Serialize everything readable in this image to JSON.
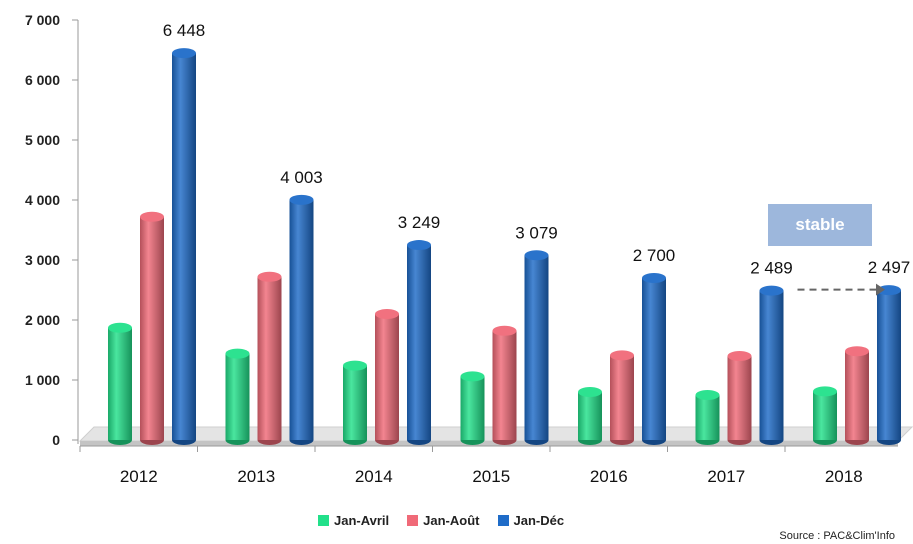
{
  "chart_data": {
    "type": "bar",
    "categories": [
      "2012",
      "2013",
      "2014",
      "2015",
      "2016",
      "2017",
      "2018"
    ],
    "series": [
      {
        "name": "Jan-Avril",
        "color": "#22e08a",
        "values": [
          1870,
          1440,
          1240,
          1060,
          800,
          750,
          810
        ]
      },
      {
        "name": "Jan-Août",
        "color": "#f06a78",
        "values": [
          3720,
          2720,
          2100,
          1820,
          1410,
          1400,
          1480
        ]
      },
      {
        "name": "Jan-Déc",
        "color": "#1f6cc8",
        "values": [
          6448,
          4003,
          3249,
          3079,
          2700,
          2489,
          2497
        ]
      }
    ],
    "data_labels": [
      "6 448",
      "4 003",
      "3 249",
      "3 079",
      "2 700",
      "2 489",
      "2 497"
    ],
    "y_ticks": [
      0,
      1000,
      2000,
      3000,
      4000,
      5000,
      6000,
      7000
    ],
    "y_tick_labels": [
      "0",
      "1 000",
      "2 000",
      "3 000",
      "4 000",
      "5 000",
      "6 000",
      "7 000"
    ],
    "ylim": [
      0,
      7000
    ],
    "grid": false,
    "legend_position": "bottom",
    "annotation": "stable",
    "source": "Source : PAC&Clim'Info"
  }
}
